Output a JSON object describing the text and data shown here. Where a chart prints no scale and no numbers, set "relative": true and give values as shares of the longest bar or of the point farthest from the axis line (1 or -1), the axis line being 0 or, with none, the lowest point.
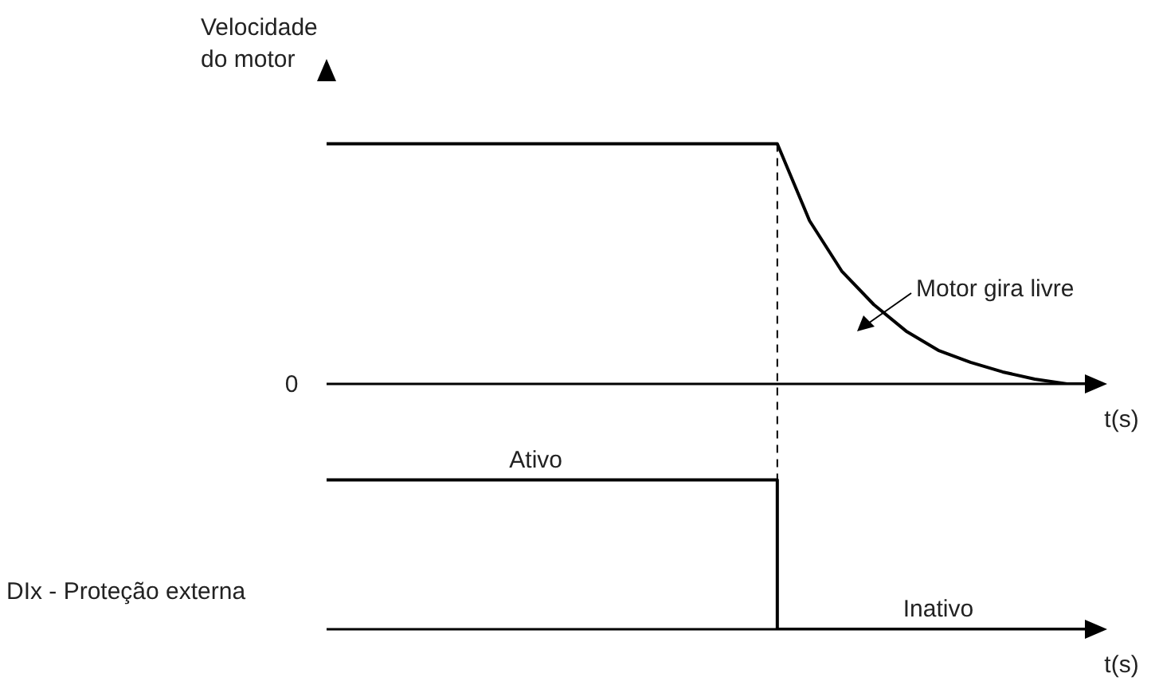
{
  "chart_data": [
    {
      "type": "line",
      "relative": true,
      "color": "#000000",
      "ylabel": "Velocidade do motor",
      "xlabel": "t(s)",
      "categories": [
        null,
        null,
        null,
        null,
        null,
        null,
        null,
        null,
        null,
        null,
        null,
        null,
        null,
        null,
        null,
        null,
        null,
        null,
        null,
        null,
        null,
        null,
        null,
        null,
        null
      ],
      "values": [
        1,
        1,
        1,
        1,
        1,
        1,
        1,
        1,
        1,
        1,
        1,
        1,
        1,
        1,
        1,
        0.68,
        0.47,
        0.33,
        0.22,
        0.14,
        0.09,
        0.05,
        0.02,
        0,
        0
      ],
      "annotations": [
        "0",
        "Motor gira livre"
      ]
    },
    {
      "type": "step",
      "relative": true,
      "color": "#000000",
      "ylabel": "DIx - Proteção externa",
      "xlabel": "t(s)",
      "categories": [
        null,
        null,
        null,
        null,
        null,
        null,
        null,
        null,
        null,
        null,
        null,
        null,
        null,
        null,
        null,
        null,
        null,
        null,
        null,
        null,
        null,
        null,
        null,
        null,
        null
      ],
      "values": [
        1,
        1,
        1,
        1,
        1,
        1,
        1,
        1,
        1,
        1,
        1,
        1,
        1,
        1,
        0,
        0,
        0,
        0,
        0,
        0,
        0,
        0,
        0,
        0,
        0
      ],
      "annotations": [
        {
          "text": "Ativo",
          "y": 1
        },
        {
          "text": "Inativo",
          "y": 0
        }
      ]
    }
  ]
}
